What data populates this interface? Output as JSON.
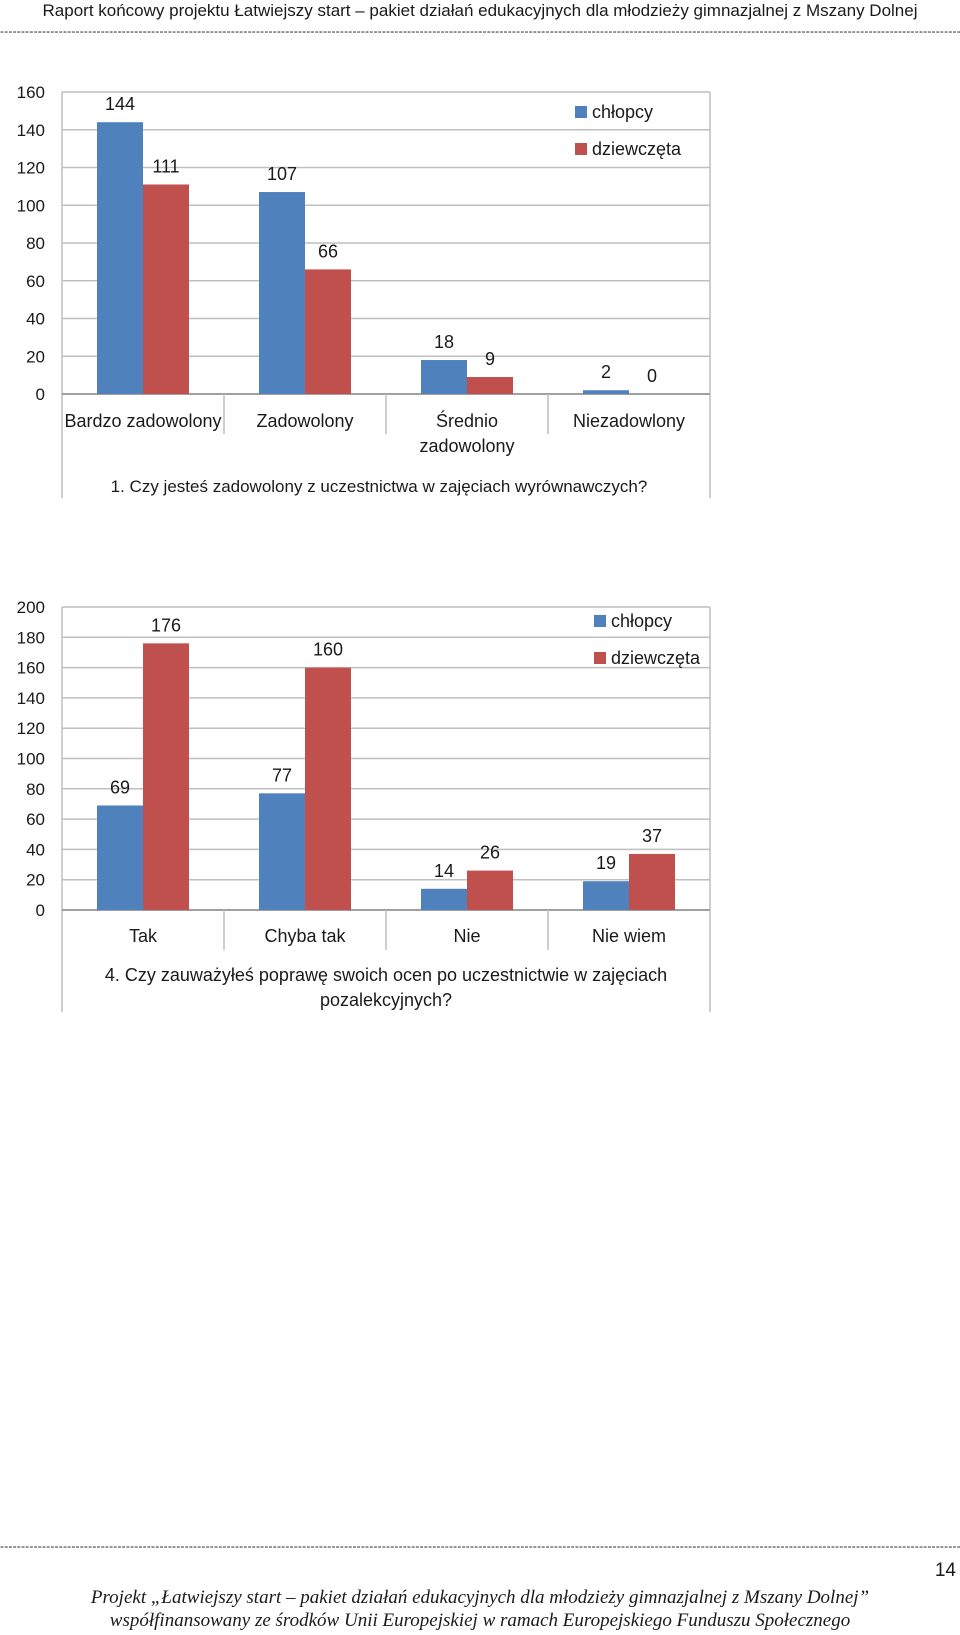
{
  "header": {
    "title": "Raport końcowy projektu Łatwiejszy start – pakiet działań edukacyjnych dla młodzieży gimnazjalnej z Mszany Dolnej"
  },
  "colors": {
    "boys": "#4f81bd",
    "girls": "#c0504d",
    "grid": "#bfbfbf",
    "axis": "#8c8c8c"
  },
  "chart_data": [
    {
      "type": "bar",
      "title": "1. Czy jesteś zadowolony z uczestnictwa w zajęciach wyrównawczych?",
      "categories": [
        "Bardzo zadowolony",
        "Zadowolony",
        "Średnio zadowolony",
        "Niezadowlony"
      ],
      "series": [
        {
          "name": "chłopcy",
          "values": [
            144,
            107,
            18,
            2
          ]
        },
        {
          "name": "dziewczęta",
          "values": [
            111,
            66,
            9,
            0
          ]
        }
      ],
      "ylim": [
        0,
        160
      ],
      "yticks": [
        0,
        20,
        40,
        60,
        80,
        100,
        120,
        140,
        160
      ],
      "grid": true,
      "legend": "top-right"
    },
    {
      "type": "bar",
      "title": "4. Czy zauważyłeś poprawę swoich ocen po uczestnictwie w zajęciach pozalekcyjnych?",
      "categories": [
        "Tak",
        "Chyba tak",
        "Nie",
        "Nie wiem"
      ],
      "series": [
        {
          "name": "chłopcy",
          "values": [
            69,
            77,
            14,
            19
          ]
        },
        {
          "name": "dziewczęta",
          "values": [
            176,
            160,
            26,
            37
          ]
        }
      ],
      "ylim": [
        0,
        200
      ],
      "yticks": [
        0,
        20,
        40,
        60,
        80,
        100,
        120,
        140,
        160,
        180,
        200
      ],
      "grid": true,
      "legend": "top-right"
    }
  ],
  "page_number": "14",
  "footer": {
    "line1": "Projekt „Łatwiejszy start – pakiet działań edukacyjnych dla młodzieży gimnazjalnej z Mszany Dolnej”",
    "line2": "współfinansowany ze środków Unii Europejskiej w ramach Europejskiego Funduszu Społecznego"
  }
}
